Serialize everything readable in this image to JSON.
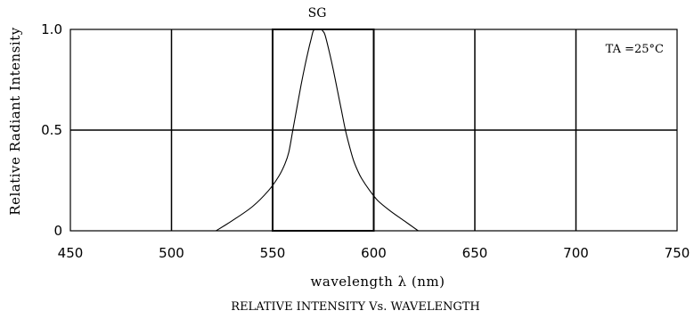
{
  "chart_data": {
    "type": "line",
    "title": "SG",
    "subtitle": "RELATIVE INTENSITY Vs. WAVELENGTH",
    "xlabel": "wavelength λ (nm)",
    "ylabel": "Relative Radiant Intensity",
    "annotation": "TA =25°C",
    "xlim": [
      450,
      750
    ],
    "ylim": [
      0,
      1.0
    ],
    "x_ticks": [
      450,
      500,
      550,
      600,
      650,
      700,
      750
    ],
    "x_tick_labels": [
      "450",
      "500",
      "550",
      "600",
      "650",
      "700",
      "750"
    ],
    "y_ticks": [
      0,
      0.5,
      1.0
    ],
    "y_tick_labels": [
      "0",
      "0.5",
      "1.0"
    ],
    "grid": true,
    "highlight_band": [
      550,
      600
    ],
    "series": [
      {
        "color": "#000000",
        "x": [
          522,
          530,
          540,
          548,
          553,
          556,
          558,
          560,
          562,
          564,
          566,
          568,
          569,
          570,
          571,
          572,
          573,
          574,
          575,
          576,
          578,
          580,
          582,
          584,
          586,
          588,
          590,
          592,
          594,
          598,
          602,
          608,
          615,
          622
        ],
        "y": [
          0.0,
          0.05,
          0.12,
          0.2,
          0.27,
          0.33,
          0.39,
          0.5,
          0.61,
          0.72,
          0.82,
          0.91,
          0.95,
          0.99,
          1.0,
          1.0,
          1.0,
          1.0,
          0.99,
          0.97,
          0.89,
          0.8,
          0.7,
          0.6,
          0.5,
          0.42,
          0.35,
          0.3,
          0.26,
          0.2,
          0.15,
          0.1,
          0.05,
          0.0
        ]
      }
    ]
  }
}
